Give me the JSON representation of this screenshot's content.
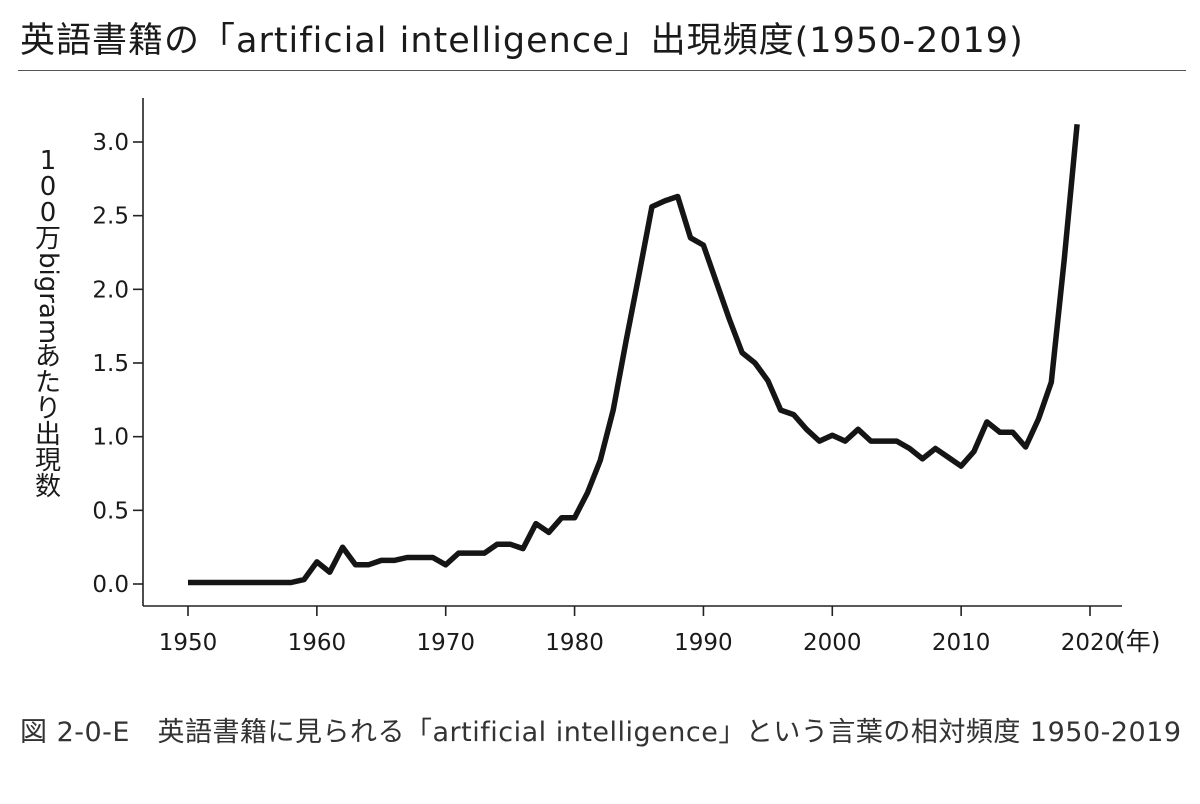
{
  "title": "英語書籍の「artificial intelligence」出現頻度(1950-2019)",
  "caption": "図 2-0-E　英語書籍に見られる「artificial intelligence」という言葉の相対頻度 1950-2019",
  "chart_data": {
    "type": "line",
    "title": "英語書籍の「artificial intelligence」出現頻度(1950-2019)",
    "xlabel": "(年)",
    "ylabel": "100万bigramあたり出現数",
    "xlim": [
      1950,
      2020
    ],
    "ylim": [
      0.0,
      3.0
    ],
    "x_ticks": [
      "1950",
      "1960",
      "1970",
      "1980",
      "1990",
      "2000",
      "2010",
      "2020"
    ],
    "y_ticks": [
      "0.0",
      "0.5",
      "1.0",
      "1.5",
      "2.0",
      "2.5",
      "3.0"
    ],
    "grid": false,
    "series": [
      {
        "x": [
          1950,
          1951,
          1952,
          1953,
          1954,
          1955,
          1956,
          1957,
          1958,
          1959,
          1960,
          1961,
          1962,
          1963,
          1964,
          1965,
          1966,
          1967,
          1968,
          1969,
          1970,
          1971,
          1972,
          1973,
          1974,
          1975,
          1976,
          1977,
          1978,
          1979,
          1980,
          1981,
          1982,
          1983,
          1984,
          1985,
          1986,
          1987,
          1988,
          1989,
          1990,
          1991,
          1992,
          1993,
          1994,
          1995,
          1996,
          1997,
          1998,
          1999,
          2000,
          2001,
          2002,
          2003,
          2004,
          2005,
          2006,
          2007,
          2008,
          2009,
          2010,
          2011,
          2012,
          2013,
          2014,
          2015,
          2016,
          2017,
          2018,
          2019
        ],
        "y": [
          0.01,
          0.01,
          0.01,
          0.01,
          0.01,
          0.01,
          0.01,
          0.01,
          0.01,
          0.03,
          0.15,
          0.08,
          0.25,
          0.13,
          0.13,
          0.16,
          0.16,
          0.18,
          0.18,
          0.18,
          0.13,
          0.21,
          0.21,
          0.21,
          0.27,
          0.27,
          0.24,
          0.41,
          0.35,
          0.45,
          0.45,
          0.62,
          0.84,
          1.18,
          1.65,
          2.1,
          2.56,
          2.6,
          2.63,
          2.35,
          2.3,
          2.05,
          1.8,
          1.57,
          1.5,
          1.38,
          1.18,
          1.15,
          1.05,
          0.97,
          1.01,
          0.97,
          1.05,
          0.97,
          0.97,
          0.97,
          0.92,
          0.85,
          0.92,
          0.86,
          0.8,
          0.9,
          1.1,
          1.03,
          1.03,
          0.93,
          1.12,
          1.37,
          2.2,
          3.12
        ]
      }
    ]
  }
}
